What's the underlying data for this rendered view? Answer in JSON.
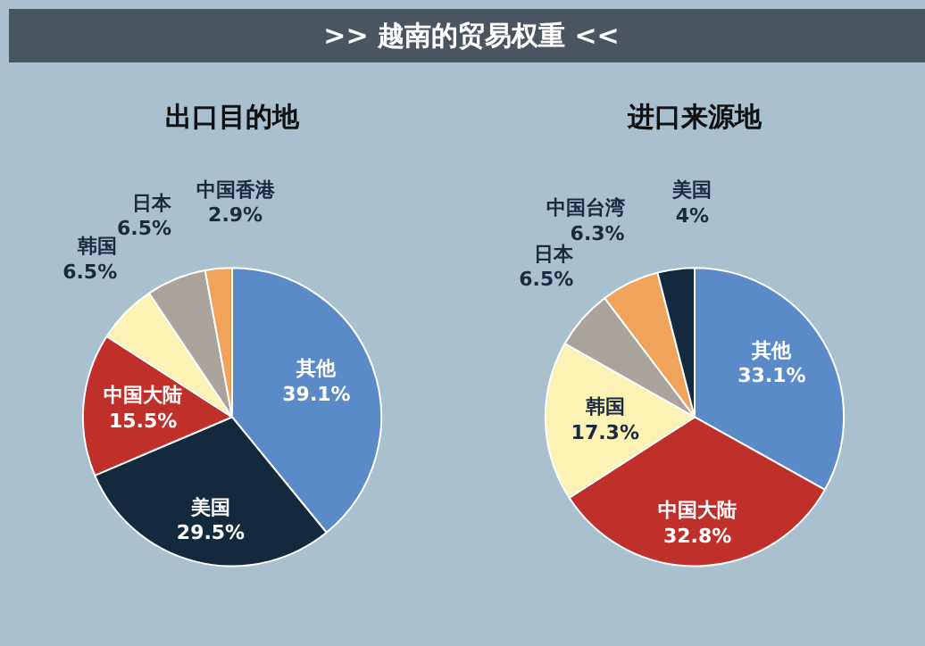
{
  "chart_data": [
    {
      "type": "pie",
      "title": "出口目的地",
      "annotations": [
        ">>  越南的贸易权重  <<"
      ],
      "categories": [
        "其他",
        "美国",
        "中国大陆",
        "韩国",
        "日本",
        "中国香港"
      ],
      "values": [
        39.1,
        29.5,
        15.5,
        6.5,
        6.5,
        2.9
      ],
      "colors": [
        "#5b8ac8",
        "#13293d",
        "#c0302a",
        "#fbf2b4",
        "#aaa39c",
        "#f0a35a"
      ],
      "value_labels": [
        "39.1%",
        "29.5%",
        "15.5%",
        "6.5%",
        "6.5%",
        "2.9%"
      ]
    },
    {
      "type": "pie",
      "title": "进口来源地",
      "categories": [
        "其他",
        "中国大陆",
        "韩国",
        "日本",
        "中国台湾",
        "美国"
      ],
      "values": [
        33.1,
        32.8,
        17.3,
        6.5,
        6.3,
        4
      ],
      "colors": [
        "#5b8ac8",
        "#c0302a",
        "#fbf2b4",
        "#aaa39c",
        "#f0a35a",
        "#13293d"
      ],
      "value_labels": [
        "33.1%",
        "32.8%",
        "17.3%",
        "6.5%",
        "6.3%",
        "4%"
      ]
    }
  ]
}
